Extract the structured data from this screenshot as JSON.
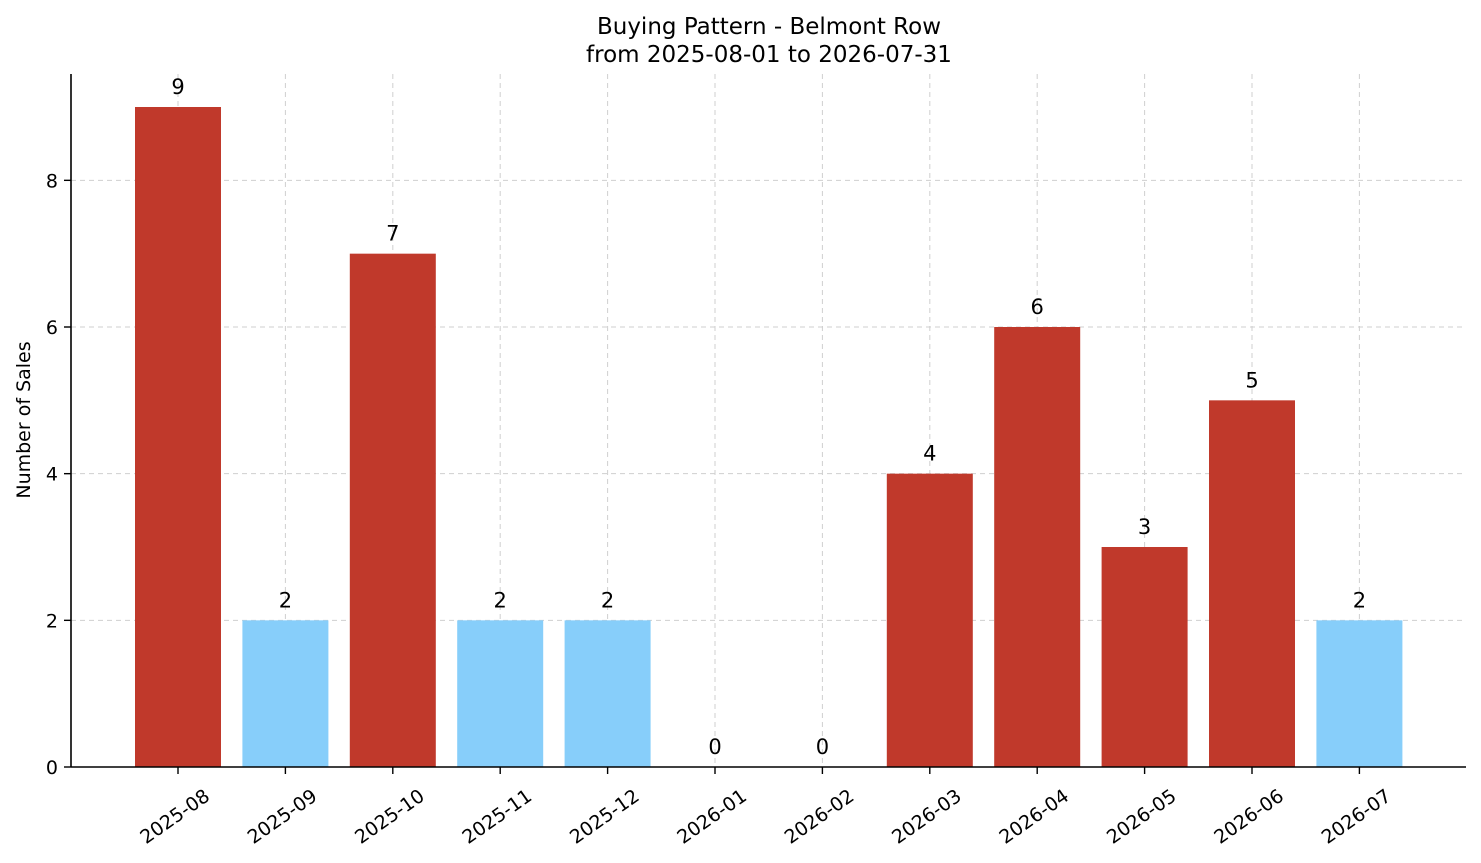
{
  "chart_data": {
    "type": "bar",
    "title": "Buying Pattern - Belmont Row",
    "subtitle": "from 2025-08-01 to 2026-07-31",
    "xlabel": "",
    "ylabel": "Number of Sales",
    "categories": [
      "2025-08",
      "2025-09",
      "2025-10",
      "2025-11",
      "2025-12",
      "2026-01",
      "2026-02",
      "2026-03",
      "2026-04",
      "2026-05",
      "2026-06",
      "2026-07"
    ],
    "values": [
      9,
      2,
      7,
      2,
      2,
      0,
      0,
      4,
      6,
      3,
      5,
      2
    ],
    "bar_colors": [
      "#c0392b",
      "#87cefa",
      "#c0392b",
      "#87cefa",
      "#87cefa",
      "#87cefa",
      "#87cefa",
      "#c0392b",
      "#c0392b",
      "#c0392b",
      "#c0392b",
      "#87cefa"
    ],
    "ylim": [
      0,
      9.45
    ],
    "yticks": [
      0,
      2,
      4,
      6,
      8
    ],
    "grid": true,
    "legend": "none",
    "data_labels": true
  }
}
